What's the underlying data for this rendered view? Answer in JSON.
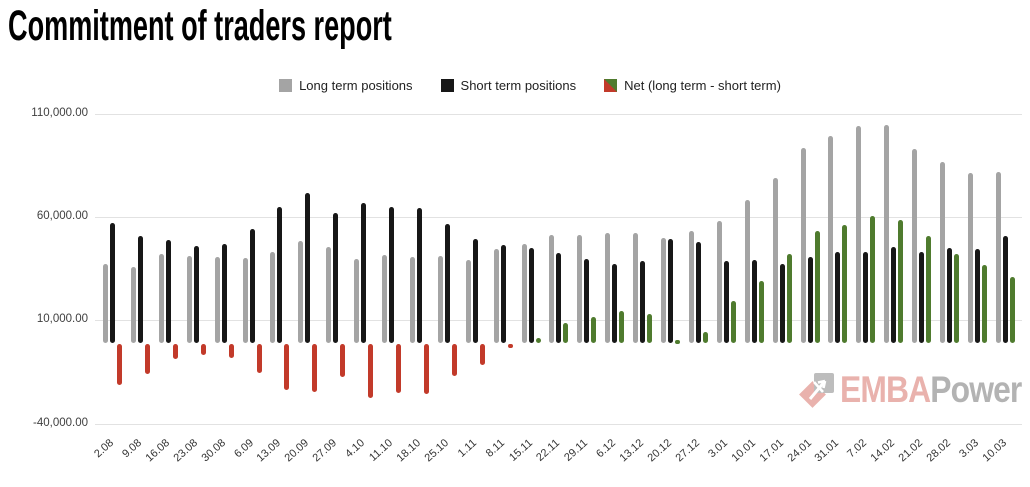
{
  "title": "Commitment of traders report",
  "legend": [
    {
      "label": "Long term positions",
      "color": "#a4a4a4"
    },
    {
      "label": "Short term positions",
      "color": "#171717"
    },
    {
      "label": "Net (long term - short term)",
      "color_positive": "#4f7b2e",
      "color_negative": "#c23a2a"
    }
  ],
  "watermark": {
    "brand_em": "EMBA",
    "brand_rest": "Power",
    "em_color": "#e9b2ad",
    "rest_color": "#b3b3b3",
    "logo_pink": "#e9b2ad",
    "logo_gray": "#bdbdbd"
  },
  "chart_data": {
    "type": "bar",
    "title": "Commitment of traders report",
    "xlabel": "",
    "ylabel": "",
    "ylim": [
      -40000,
      110000
    ],
    "grid": "horizontal",
    "legend_position": "top-center",
    "y_ticks": [
      {
        "label": "110,000.00",
        "value": 110000
      },
      {
        "label": "60,000.00",
        "value": 60000
      },
      {
        "label": "10,000.00",
        "value": 10000
      },
      {
        "label": "-40,000.00",
        "value": -40000
      }
    ],
    "categories": [
      "2.08",
      "9.08",
      "16.08",
      "23.08",
      "30.08",
      "6.09",
      "13.09",
      "20.09",
      "27.09",
      "4.10",
      "11.10",
      "18.10",
      "25.10",
      "1.11",
      "8.11",
      "15.11",
      "22.11",
      "29.11",
      "6.12",
      "13.12",
      "20.12",
      "27.12",
      "3.01",
      "10.01",
      "17.01",
      "24.01",
      "31.01",
      "7.02",
      "14.02",
      "21.02",
      "28.02",
      "3.03",
      "10.03"
    ],
    "series": [
      {
        "name": "Long term positions",
        "color": "#a4a4a4",
        "values": [
          37000,
          35500,
          42000,
          41000,
          40500,
          40000,
          43000,
          48500,
          45500,
          39500,
          41500,
          40500,
          41000,
          39000,
          44500,
          47000,
          51000,
          51000,
          52000,
          52000,
          50000,
          53000,
          58000,
          68000,
          79000,
          93500,
          99000,
          104000,
          104500,
          93000,
          86500,
          81000,
          81500
        ]
      },
      {
        "name": "Short term positions",
        "color": "#171717",
        "values": [
          57000,
          50500,
          49000,
          46000,
          47000,
          54000,
          65000,
          71500,
          62000,
          66500,
          65000,
          64500,
          56500,
          49500,
          46500,
          45000,
          42500,
          39500,
          37000,
          38500,
          49500,
          48000,
          38500,
          39000,
          37000,
          40500,
          43000,
          43000,
          45500,
          43000,
          45000,
          44500,
          50500
        ]
      },
      {
        "name": "Net (long term - short term)",
        "color_positive": "#4f7b2e",
        "color_negative": "#c23a2a",
        "values": [
          -19500,
          -14500,
          -7000,
          -5000,
          -6500,
          -14000,
          -22000,
          -23000,
          -16000,
          -26000,
          -23500,
          -24000,
          -15500,
          -10000,
          -2000,
          1500,
          8500,
          11500,
          14500,
          13000,
          500,
          4500,
          19500,
          29000,
          42000,
          53000,
          56000,
          60500,
          58500,
          50500,
          42000,
          36500,
          31000
        ]
      }
    ]
  }
}
